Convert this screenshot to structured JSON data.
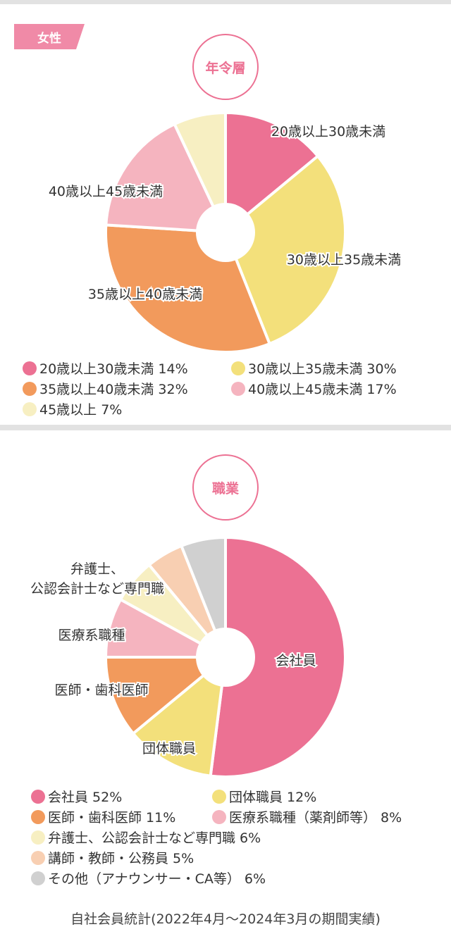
{
  "gender_tag": "女性",
  "chart_data": [
    {
      "type": "pie",
      "title": "年令層",
      "categories": [
        "20歳以上30歳未満",
        "30歳以上35歳未満",
        "35歳以上40歳未満",
        "40歳以上45歳未満",
        "45歳以上"
      ],
      "values": [
        14,
        30,
        32,
        17,
        7
      ],
      "colors": [
        "#ec7193",
        "#f3e07b",
        "#f29a5c",
        "#f5b4bf",
        "#f7efc2"
      ],
      "slice_labels": [
        "20歳以上30歳未満",
        "30歳以上35歳未満",
        "35歳以上40歳未満",
        "40歳以上45歳未満",
        ""
      ],
      "legend": [
        [
          "20歳以上30歳未満 14%",
          "30歳以上35歳未満 30%"
        ],
        [
          "35歳以上40歳未満 32%",
          "40歳以上45歳未満 17%"
        ],
        [
          "45歳以上 7%"
        ]
      ]
    },
    {
      "type": "pie",
      "title": "職業",
      "categories": [
        "会社員",
        "団体職員",
        "医師・歯科医師",
        "医療系職種(薬剤師等)",
        "弁護士、公認会計士など専門職",
        "講師・教師・公務員",
        "その他(アナウンサー・CA等)"
      ],
      "values": [
        52,
        12,
        11,
        8,
        6,
        5,
        6
      ],
      "colors": [
        "#ec7193",
        "#f3e07b",
        "#f29a5c",
        "#f5b4bf",
        "#f7efc2",
        "#f8cfb2",
        "#d0d0d0"
      ],
      "slice_labels": [
        "会社員",
        "団体職員",
        "医師・歯科医師",
        "医療系職種",
        "弁護士、|公認会計士など専門職",
        "",
        ""
      ],
      "legend": [
        [
          "会社員 52%",
          "団体職員 12%"
        ],
        [
          "医師・歯科医師 11%",
          "医療系職種（薬剤師等） 8%"
        ],
        [
          "弁護士、公認会計士など専門職 6%"
        ],
        [
          "講師・教師・公務員 5%"
        ],
        [
          "その他（アナウンサー・CA等） 6%"
        ]
      ]
    }
  ],
  "footnote": "自社会員統計(2022年4月〜2024年3月の期間実績)"
}
